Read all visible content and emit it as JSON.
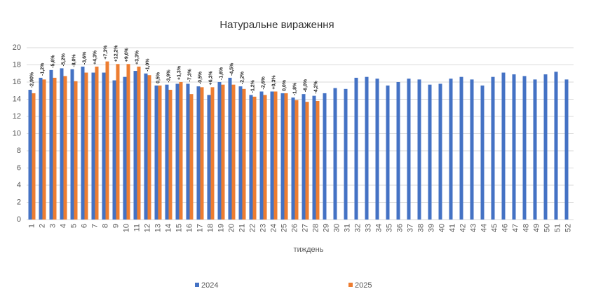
{
  "chart_data": {
    "type": "bar",
    "title": "Натуральне вираження",
    "x_label": "тиждень",
    "categories": [
      "1",
      "2",
      "3",
      "4",
      "5",
      "6",
      "7",
      "8",
      "9",
      "10",
      "11",
      "12",
      "13",
      "14",
      "15",
      "16",
      "17",
      "18",
      "19",
      "20",
      "21",
      "22",
      "23",
      "24",
      "25",
      "26",
      "27",
      "28",
      "29",
      "30",
      "31",
      "32",
      "33",
      "34",
      "35",
      "36",
      "37",
      "38",
      "39",
      "40",
      "41",
      "42",
      "43",
      "44",
      "45",
      "46",
      "47",
      "48",
      "49",
      "50",
      "51",
      "52"
    ],
    "series": [
      {
        "name": "2024",
        "color": "#4472c4",
        "values": [
          15.1,
          16.5,
          17.4,
          17.6,
          17.5,
          17.8,
          17.1,
          17.1,
          16.2,
          16.6,
          17.3,
          17.0,
          15.6,
          15.7,
          15.8,
          15.8,
          15.5,
          14.5,
          16.0,
          16.5,
          15.5,
          14.5,
          14.9,
          14.9,
          14.7,
          14.2,
          14.6,
          14.4,
          14.7,
          15.3,
          15.2,
          16.5,
          16.6,
          16.4,
          15.6,
          16.0,
          16.4,
          16.3,
          15.7,
          15.8,
          16.4,
          16.6,
          16.3,
          15.6,
          16.6,
          17.1,
          16.9,
          16.7,
          16.3,
          16.9,
          17.2,
          16.3
        ]
      },
      {
        "name": "2025",
        "color": "#ed7d31",
        "values": [
          14.7,
          16.3,
          16.5,
          16.7,
          16.1,
          17.1,
          17.8,
          18.4,
          18.1,
          18.1,
          17.8,
          16.8,
          15.6,
          15.1,
          16.0,
          14.6,
          15.4,
          15.4,
          15.7,
          15.7,
          15.2,
          14.3,
          14.5,
          14.9,
          14.7,
          13.9,
          13.7,
          13.8,
          null,
          null,
          null,
          null,
          null,
          null,
          null,
          null,
          null,
          null,
          null,
          null,
          null,
          null,
          null,
          null,
          null,
          null,
          null,
          null,
          null,
          null,
          null,
          null
        ],
        "annotations": [
          "-2,90%",
          "-1,2%",
          "-5,6%",
          "-5,2%",
          "-8,0%",
          "-3,6%",
          "+4,3%",
          "+7,3%",
          "+12,2%",
          "+9,6%",
          "+3,3%",
          "-1,0%",
          "0,5%",
          "-3,9%",
          "+1,3%",
          "-7,3%",
          "-0,5%",
          "+6,3%",
          "-1,6%",
          "-4,5%",
          "-2,2%",
          "-1,2%",
          "-2,6%",
          "+0,3%",
          "0,0%",
          "-1,8%",
          "-6,0%",
          "-4,2%",
          null,
          null,
          null,
          null,
          null,
          null,
          null,
          null,
          null,
          null,
          null,
          null,
          null,
          null,
          null,
          null,
          null,
          null,
          null,
          null,
          null,
          null,
          null,
          null
        ]
      }
    ],
    "ylim": [
      0,
      20
    ],
    "yticks": [
      0,
      2,
      4,
      6,
      8,
      10,
      12,
      14,
      16,
      18,
      20
    ],
    "grid": true,
    "legend": "bottom"
  }
}
